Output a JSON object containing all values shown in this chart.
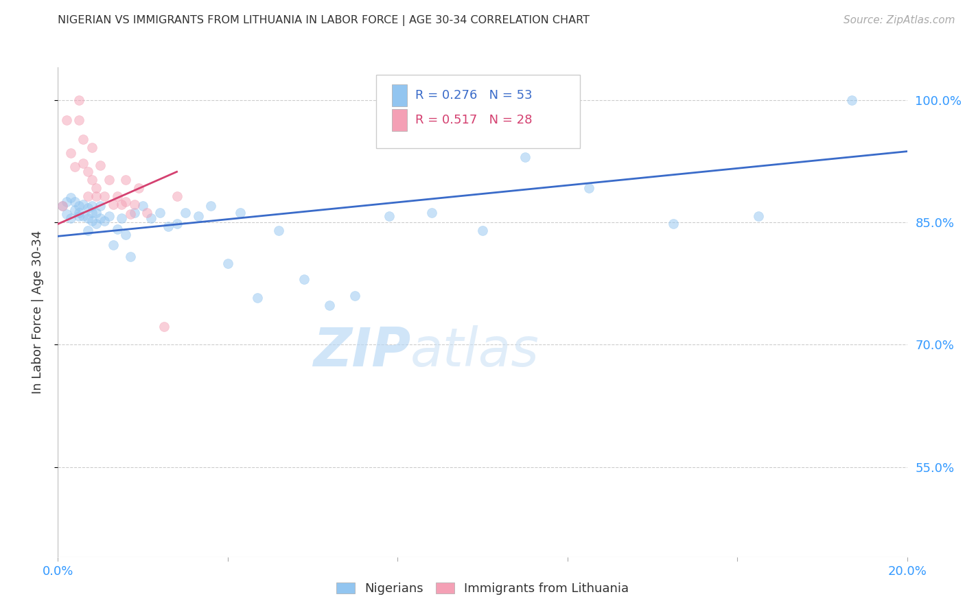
{
  "title": "NIGERIAN VS IMMIGRANTS FROM LITHUANIA IN LABOR FORCE | AGE 30-34 CORRELATION CHART",
  "source_text": "Source: ZipAtlas.com",
  "ylabel": "In Labor Force | Age 30-34",
  "watermark_zip": "ZIP",
  "watermark_atlas": "atlas",
  "xmin": 0.0,
  "xmax": 0.2,
  "ymin": 0.44,
  "ymax": 1.04,
  "yticks": [
    0.55,
    0.7,
    0.85,
    1.0
  ],
  "ytick_labels": [
    "55.0%",
    "70.0%",
    "85.0%",
    "100.0%"
  ],
  "xticks": [
    0.0,
    0.04,
    0.08,
    0.12,
    0.16,
    0.2
  ],
  "legend_R_blue": "R = 0.276",
  "legend_N_blue": "N = 53",
  "legend_R_pink": "R = 0.517",
  "legend_N_pink": "N = 28",
  "legend_label_blue": "Nigerians",
  "legend_label_pink": "Immigrants from Lithuania",
  "blue_color": "#92c5f0",
  "pink_color": "#f4a0b5",
  "blue_line_color": "#3a6bc9",
  "pink_line_color": "#d44070",
  "blue_scatter_x": [
    0.001,
    0.002,
    0.002,
    0.003,
    0.003,
    0.004,
    0.004,
    0.005,
    0.005,
    0.005,
    0.006,
    0.006,
    0.007,
    0.007,
    0.007,
    0.008,
    0.008,
    0.008,
    0.009,
    0.009,
    0.01,
    0.01,
    0.011,
    0.012,
    0.013,
    0.014,
    0.015,
    0.016,
    0.017,
    0.018,
    0.02,
    0.022,
    0.024,
    0.026,
    0.028,
    0.03,
    0.033,
    0.036,
    0.04,
    0.043,
    0.047,
    0.052,
    0.058,
    0.064,
    0.07,
    0.078,
    0.088,
    0.1,
    0.11,
    0.125,
    0.145,
    0.165,
    0.187
  ],
  "blue_scatter_y": [
    0.87,
    0.86,
    0.875,
    0.855,
    0.88,
    0.865,
    0.875,
    0.858,
    0.87,
    0.862,
    0.858,
    0.872,
    0.855,
    0.868,
    0.84,
    0.862,
    0.87,
    0.852,
    0.862,
    0.848,
    0.855,
    0.87,
    0.852,
    0.858,
    0.822,
    0.842,
    0.855,
    0.835,
    0.808,
    0.862,
    0.87,
    0.855,
    0.862,
    0.845,
    0.848,
    0.862,
    0.858,
    0.87,
    0.8,
    0.862,
    0.758,
    0.84,
    0.78,
    0.748,
    0.76,
    0.858,
    0.862,
    0.84,
    0.93,
    0.892,
    0.848,
    0.858,
    1.0
  ],
  "pink_scatter_x": [
    0.001,
    0.002,
    0.003,
    0.004,
    0.005,
    0.005,
    0.006,
    0.006,
    0.007,
    0.007,
    0.008,
    0.008,
    0.009,
    0.009,
    0.01,
    0.011,
    0.012,
    0.013,
    0.014,
    0.015,
    0.016,
    0.016,
    0.017,
    0.018,
    0.019,
    0.021,
    0.025,
    0.028
  ],
  "pink_scatter_y": [
    0.87,
    0.975,
    0.935,
    0.918,
    0.975,
    1.0,
    0.952,
    0.922,
    0.882,
    0.912,
    0.902,
    0.942,
    0.882,
    0.892,
    0.92,
    0.882,
    0.902,
    0.872,
    0.882,
    0.872,
    0.875,
    0.902,
    0.86,
    0.872,
    0.892,
    0.862,
    0.722,
    0.882
  ],
  "blue_trend_x": [
    0.0,
    0.2
  ],
  "blue_trend_y": [
    0.833,
    0.937
  ],
  "pink_trend_x": [
    0.0,
    0.028
  ],
  "pink_trend_y": [
    0.848,
    0.912
  ],
  "background_color": "#ffffff",
  "grid_color": "#cccccc",
  "title_color": "#333333",
  "axis_color": "#3399ff",
  "dot_size": 100,
  "dot_alpha": 0.5,
  "line_width": 2.0
}
